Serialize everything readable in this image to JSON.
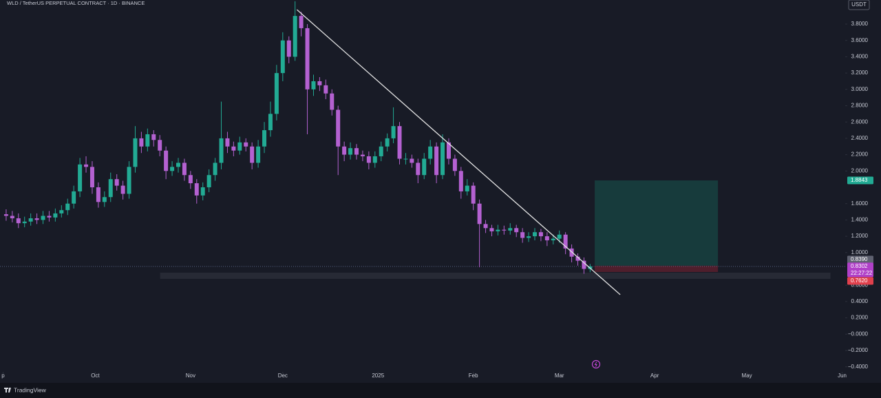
{
  "chart_data": {
    "type": "candlestick",
    "title": "WLD / TetherUS PERPETUAL CONTRACT · 1D · BINANCE",
    "currency": "USDT",
    "up_color": "#22ab94",
    "down_color": "#b461d1",
    "grid": false,
    "xlim": [
      0,
      275
    ],
    "ylim": [
      -0.4616,
      4.0954
    ],
    "xticks": [
      {
        "value": 1,
        "label": "p"
      },
      {
        "value": 31,
        "label": "Oct"
      },
      {
        "value": 62,
        "label": "Nov"
      },
      {
        "value": 92,
        "label": "Dec"
      },
      {
        "value": 123,
        "label": "2025"
      },
      {
        "value": 154,
        "label": "Feb"
      },
      {
        "value": 182,
        "label": "Mar"
      },
      {
        "value": 213,
        "label": "Apr"
      },
      {
        "value": 243,
        "label": "May"
      },
      {
        "value": 274,
        "label": "Jun"
      }
    ],
    "yticks": [
      {
        "value": 3.8,
        "label": "3.8000"
      },
      {
        "value": 3.6,
        "label": "3.6000"
      },
      {
        "value": 3.4,
        "label": "3.4000"
      },
      {
        "value": 3.2,
        "label": "3.2000"
      },
      {
        "value": 3.0,
        "label": "3.0000"
      },
      {
        "value": 2.8,
        "label": "2.8000"
      },
      {
        "value": 2.6,
        "label": "2.6000"
      },
      {
        "value": 2.4,
        "label": "2.4000"
      },
      {
        "value": 2.2,
        "label": "2.2000"
      },
      {
        "value": 2.0,
        "label": "2.0000"
      },
      {
        "value": 1.6,
        "label": "1.6000"
      },
      {
        "value": 1.4,
        "label": "1.4000"
      },
      {
        "value": 1.2,
        "label": "1.2000"
      },
      {
        "value": 1.0,
        "label": "1.0000"
      },
      {
        "value": 0.6,
        "label": "0.6000"
      },
      {
        "value": 0.4,
        "label": "0.4000"
      },
      {
        "value": 0.2,
        "label": "0.2000"
      },
      {
        "value": 0,
        "label": "−0.0000"
      },
      {
        "value": -0.2,
        "label": "−0.2000"
      },
      {
        "value": -0.4,
        "label": "−0.4000"
      }
    ],
    "x": [
      2,
      4,
      6,
      8,
      10,
      12,
      14,
      16,
      18,
      20,
      22,
      24,
      26,
      28,
      30,
      32,
      34,
      36,
      38,
      40,
      42,
      44,
      46,
      48,
      50,
      52,
      54,
      56,
      58,
      60,
      62,
      64,
      66,
      68,
      70,
      72,
      74,
      76,
      78,
      80,
      82,
      84,
      86,
      88,
      90,
      92,
      94,
      96,
      98,
      100,
      102,
      104,
      106,
      108,
      110,
      112,
      114,
      116,
      118,
      120,
      122,
      124,
      126,
      128,
      130,
      132,
      134,
      136,
      138,
      140,
      142,
      144,
      146,
      148,
      150,
      152,
      154,
      156,
      158,
      160,
      162,
      164,
      166,
      168,
      170,
      172,
      174,
      176,
      178,
      180,
      182,
      184,
      186,
      188,
      190,
      192
    ],
    "open": [
      1.47,
      1.45,
      1.42,
      1.36,
      1.38,
      1.42,
      1.4,
      1.45,
      1.43,
      1.48,
      1.52,
      1.6,
      1.75,
      2.08,
      2.05,
      1.8,
      1.62,
      1.68,
      1.9,
      1.82,
      1.72,
      2.05,
      2.4,
      2.3,
      2.45,
      2.38,
      2.25,
      2.0,
      2.05,
      2.1,
      1.95,
      1.85,
      1.7,
      1.8,
      1.95,
      2.1,
      2.4,
      2.3,
      2.25,
      2.35,
      2.3,
      2.1,
      2.3,
      2.5,
      2.7,
      3.2,
      3.6,
      3.4,
      3.9,
      3.75,
      3.0,
      3.1,
      3.05,
      2.95,
      2.75,
      2.3,
      2.2,
      2.28,
      2.2,
      2.18,
      2.1,
      2.18,
      2.3,
      2.4,
      2.55,
      2.15,
      2.15,
      2.1,
      1.95,
      2.15,
      2.3,
      1.95,
      2.35,
      2.15,
      2.0,
      1.75,
      1.82,
      1.6,
      1.35,
      1.3,
      1.26,
      1.28,
      1.27,
      1.3,
      1.25,
      1.18,
      1.2,
      1.25,
      1.2,
      1.15,
      1.17,
      1.22,
      1.05,
      0.95,
      0.9,
      0.8
    ],
    "high": [
      1.53,
      1.51,
      1.48,
      1.44,
      1.48,
      1.48,
      1.51,
      1.51,
      1.54,
      1.58,
      1.66,
      1.82,
      2.16,
      2.18,
      2.12,
      1.86,
      1.75,
      1.98,
      1.96,
      1.88,
      2.12,
      2.55,
      2.48,
      2.52,
      2.5,
      2.44,
      2.3,
      2.12,
      2.16,
      2.15,
      2.0,
      1.9,
      1.86,
      2.02,
      2.16,
      2.85,
      2.48,
      2.36,
      2.42,
      2.4,
      2.35,
      2.38,
      2.6,
      2.85,
      3.3,
      3.7,
      3.65,
      4.08,
      3.95,
      3.8,
      3.18,
      3.15,
      3.12,
      3.0,
      2.8,
      2.36,
      2.35,
      2.33,
      2.25,
      2.24,
      2.24,
      2.36,
      2.46,
      2.78,
      2.6,
      2.22,
      2.2,
      2.15,
      2.22,
      2.38,
      2.35,
      2.45,
      2.4,
      2.2,
      2.05,
      1.9,
      1.86,
      1.65,
      1.4,
      1.34,
      1.34,
      1.33,
      1.36,
      1.34,
      1.3,
      1.25,
      1.3,
      1.29,
      1.25,
      1.22,
      1.27,
      1.25,
      1.1,
      0.99,
      0.94,
      0.86
    ],
    "low": [
      1.39,
      1.37,
      1.3,
      1.31,
      1.33,
      1.35,
      1.35,
      1.38,
      1.38,
      1.43,
      1.46,
      1.54,
      1.68,
      1.98,
      1.72,
      1.55,
      1.56,
      1.62,
      1.76,
      1.65,
      1.66,
      1.98,
      2.22,
      2.24,
      2.3,
      2.18,
      1.9,
      1.94,
      1.98,
      1.88,
      1.78,
      1.6,
      1.64,
      1.74,
      1.88,
      2.02,
      2.22,
      2.18,
      2.2,
      2.24,
      2.02,
      2.04,
      2.22,
      2.42,
      2.62,
      3.1,
      3.32,
      3.35,
      3.65,
      2.45,
      2.92,
      2.98,
      2.88,
      2.68,
      1.95,
      2.12,
      2.14,
      2.14,
      2.12,
      2.02,
      2.04,
      2.12,
      2.24,
      2.34,
      2.08,
      2.08,
      2.04,
      1.85,
      1.9,
      2.08,
      1.85,
      1.9,
      2.08,
      1.94,
      1.66,
      1.7,
      1.52,
      0.82,
      1.24,
      1.2,
      1.21,
      1.22,
      1.22,
      1.19,
      1.12,
      1.13,
      1.15,
      1.14,
      1.08,
      1.1,
      1.12,
      0.98,
      0.88,
      0.84,
      0.74,
      0.76
    ],
    "close": [
      1.45,
      1.42,
      1.36,
      1.38,
      1.42,
      1.4,
      1.45,
      1.43,
      1.48,
      1.52,
      1.6,
      1.75,
      2.08,
      2.05,
      1.8,
      1.62,
      1.68,
      1.9,
      1.82,
      1.72,
      2.05,
      2.4,
      2.3,
      2.45,
      2.38,
      2.25,
      2.0,
      2.05,
      2.1,
      1.95,
      1.85,
      1.7,
      1.8,
      1.95,
      2.1,
      2.4,
      2.3,
      2.25,
      2.35,
      2.3,
      2.1,
      2.3,
      2.5,
      2.7,
      3.2,
      3.6,
      3.4,
      3.9,
      3.75,
      3.0,
      3.1,
      3.05,
      2.95,
      2.75,
      2.3,
      2.2,
      2.28,
      2.2,
      2.18,
      2.1,
      2.18,
      2.3,
      2.4,
      2.55,
      2.15,
      2.15,
      2.1,
      1.95,
      2.15,
      2.3,
      1.95,
      2.35,
      2.15,
      2.0,
      1.75,
      1.82,
      1.6,
      1.35,
      1.3,
      1.26,
      1.28,
      1.27,
      1.3,
      1.25,
      1.18,
      1.2,
      1.25,
      1.2,
      1.15,
      1.17,
      1.22,
      1.05,
      0.95,
      0.9,
      0.8,
      0.83
    ],
    "trendline": {
      "x": [
        96.6,
        201.8
      ],
      "y": [
        3.977,
        0.484
      ],
      "color": "#e6e6e6"
    },
    "zone": {
      "x": [
        52.1,
        270.2
      ],
      "y": [
        0.678,
        0.754
      ],
      "color": "#2a2d38"
    },
    "position": {
      "x": [
        193.5,
        233.6
      ],
      "target": 1.8843,
      "entry": 0.839,
      "stop": 0.762,
      "profit_color": "#173b3c",
      "loss_color": "#4f1e2c"
    },
    "last_price": {
      "value": 0.8302,
      "color": "#5d6a8a"
    },
    "price_tags": [
      {
        "value": 1.8843,
        "label": "1.8843",
        "color": "#22ab94"
      },
      {
        "value": 0.839,
        "label": "0.8390",
        "color": "#5e6170"
      },
      {
        "value": 0.8302,
        "label": "0.8302",
        "color": "#b040c8",
        "countdown": "22:27:22"
      },
      {
        "value": 0.762,
        "label": "0.7620",
        "color": "#e0404c"
      }
    ]
  },
  "footer": {
    "brand": "TradingView"
  }
}
